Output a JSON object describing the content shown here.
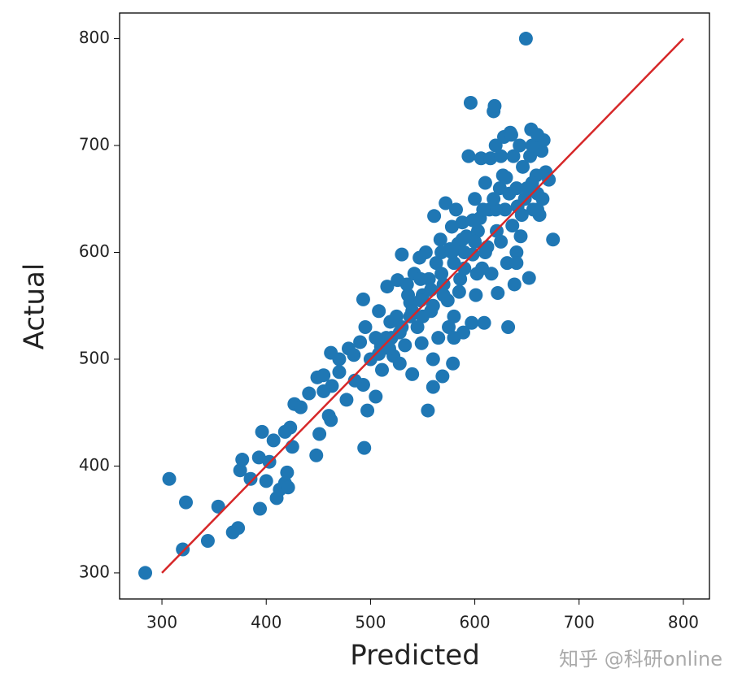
{
  "chart_data": {
    "type": "scatter",
    "x_label": "Predicted",
    "y_label": "Actual",
    "color": "#1f77b4",
    "x": [
      284,
      307,
      320,
      323,
      344,
      354,
      368,
      373,
      375,
      377,
      385,
      394,
      396,
      393,
      400,
      403,
      407,
      410,
      413,
      418,
      420,
      418,
      423,
      421,
      425,
      427,
      433,
      441,
      448,
      451,
      449,
      455,
      460,
      462,
      462,
      470,
      477,
      479,
      484,
      490,
      493,
      494,
      493,
      497,
      495,
      500,
      505,
      510,
      508,
      511,
      516,
      519,
      522,
      526,
      528,
      530,
      533,
      536,
      538,
      540,
      542,
      545,
      547,
      549,
      550,
      553,
      555,
      556,
      558,
      560,
      561,
      563,
      565,
      567,
      569,
      570,
      572,
      574,
      576,
      578,
      579,
      580,
      582,
      584,
      586,
      588,
      589,
      590,
      592,
      594,
      596,
      597,
      598,
      600,
      601,
      603,
      605,
      606,
      607,
      609,
      610,
      612,
      614,
      616,
      618,
      619,
      620,
      621,
      622,
      624,
      625,
      627,
      628,
      629,
      631,
      632,
      633,
      634,
      636,
      637,
      638,
      640,
      641,
      643,
      644,
      646,
      648,
      649,
      650,
      652,
      653,
      654,
      656,
      658,
      659,
      660,
      662,
      664,
      666,
      668,
      671,
      675,
      615,
      602,
      585,
      575,
      568,
      548,
      535,
      525,
      515,
      505,
      485,
      470,
      463,
      455,
      620,
      630,
      640,
      645,
      610,
      600,
      590,
      580,
      570,
      560,
      550,
      540,
      530,
      520,
      625,
      635,
      655,
      665,
      618,
      608,
      598,
      588,
      578,
      568,
      558,
      548,
      538,
      528,
      518,
      508,
      655,
      660,
      660,
      640,
      580,
      560
    ],
    "values": [
      300,
      388,
      322,
      366,
      330,
      362,
      338,
      342,
      396,
      406,
      388,
      360,
      432,
      408,
      386,
      404,
      424,
      370,
      378,
      384,
      394,
      432,
      436,
      380,
      418,
      458,
      455,
      468,
      410,
      430,
      483,
      485,
      447,
      443,
      506,
      488,
      462,
      510,
      504,
      516,
      476,
      417,
      556,
      452,
      530,
      500,
      465,
      512,
      545,
      490,
      568,
      535,
      503,
      574,
      496,
      598,
      513,
      560,
      553,
      486,
      580,
      530,
      595,
      515,
      560,
      600,
      452,
      575,
      545,
      474,
      634,
      590,
      520,
      612,
      484,
      570,
      646,
      555,
      603,
      624,
      496,
      540,
      640,
      608,
      575,
      628,
      525,
      585,
      615,
      690,
      740,
      534,
      598,
      650,
      560,
      620,
      632,
      688,
      585,
      534,
      665,
      605,
      640,
      580,
      732,
      737,
      700,
      620,
      562,
      660,
      610,
      672,
      708,
      640,
      590,
      530,
      655,
      712,
      625,
      690,
      570,
      660,
      643,
      700,
      615,
      680,
      650,
      800,
      660,
      576,
      690,
      715,
      640,
      700,
      672,
      655,
      635,
      695,
      705,
      675,
      668,
      612,
      688,
      580,
      563,
      530,
      600,
      575,
      570,
      540,
      520,
      520,
      480,
      500,
      475,
      470,
      640,
      670,
      600,
      635,
      600,
      610,
      600,
      590,
      560,
      550,
      540,
      545,
      530,
      520,
      690,
      710,
      665,
      650,
      650,
      640,
      630,
      612,
      600,
      580,
      565,
      555,
      540,
      525,
      510,
      505,
      700,
      710,
      640,
      590,
      520,
      500
    ],
    "reference_line": {
      "x": [
        300,
        800
      ],
      "values": [
        300,
        800
      ],
      "color": "#d62728"
    },
    "xlim": [
      259.4,
      825
    ],
    "ylim": [
      275.6,
      824
    ],
    "xticks": [
      300,
      400,
      500,
      600,
      700,
      800
    ],
    "yticks": [
      300,
      400,
      500,
      600,
      700,
      800
    ]
  },
  "watermark": "知乎 @科研online"
}
